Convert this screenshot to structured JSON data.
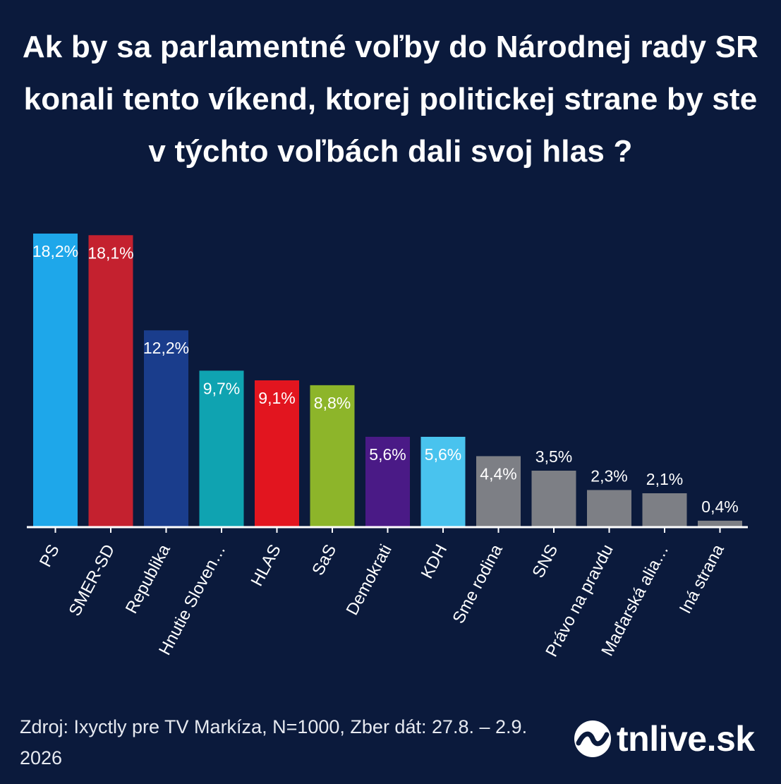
{
  "title": "Ak by sa parlamentné voľby do Národnej rady SR konali tento víkend, ktorej politickej strane by ste v týchto voľbách dali svoj hlas ?",
  "footer": {
    "source": "Zdroj: Ixyctly pre TV Markíza, N=1000, Zber dát: 27.8. – 2.9. 2026"
  },
  "brand": {
    "name": "tnlive.sk",
    "icon": "tn-logo-icon"
  },
  "chart_data": {
    "type": "bar",
    "categories": [
      "PS",
      "SMER-SD",
      "Republika",
      "Hnutie Sloven…",
      "HLAS",
      "SaS",
      "Demokrati",
      "KDH",
      "Sme rodina",
      "SNS",
      "Právo na pravdu",
      "Maďarská alia…",
      "Iná strana"
    ],
    "values": [
      18.2,
      18.1,
      12.2,
      9.7,
      9.1,
      8.8,
      5.6,
      5.6,
      4.4,
      3.5,
      2.3,
      2.1,
      0.4
    ],
    "labels": [
      "18,2%",
      "18,1%",
      "12,2%",
      "9,7%",
      "9,1%",
      "8,8%",
      "5,6%",
      "5,6%",
      "4,4%",
      "3,5%",
      "2,3%",
      "2,1%",
      "0,4%"
    ],
    "colors": [
      "#1ea7ea",
      "#c4212f",
      "#1a3d8c",
      "#0fa3b1",
      "#e2151f",
      "#8db52a",
      "#4a1a86",
      "#49c3ee",
      "#7d7f85",
      "#7d7f85",
      "#7d7f85",
      "#7d7f85",
      "#7d7f85"
    ],
    "ylim": [
      0,
      18.2
    ],
    "grid": false,
    "legend": "none"
  }
}
